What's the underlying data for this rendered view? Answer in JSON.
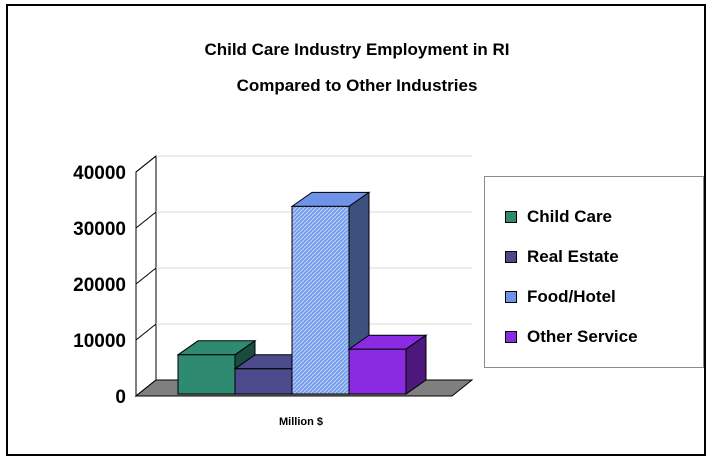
{
  "chart_data": {
    "type": "bar",
    "title": "Child Care Industry Employment in RI",
    "subtitle": "Compared to Other Industries",
    "xlabel": "Million $",
    "ylabel": "",
    "ylim": [
      0,
      40000
    ],
    "yticks": [
      "0",
      "10000",
      "20000",
      "30000",
      "40000"
    ],
    "categories": [
      "Million $"
    ],
    "series": [
      {
        "name": "Child Care",
        "values": [
          7000
        ],
        "color": "#2e8b72"
      },
      {
        "name": "Real Estate",
        "values": [
          4500
        ],
        "color": "#4b4a8c"
      },
      {
        "name": "Food/Hotel",
        "values": [
          33500
        ],
        "color": "#6f93e6"
      },
      {
        "name": "Other Service",
        "values": [
          8000
        ],
        "color": "#8a2be2"
      }
    ],
    "grid": true,
    "legend_position": "right"
  }
}
